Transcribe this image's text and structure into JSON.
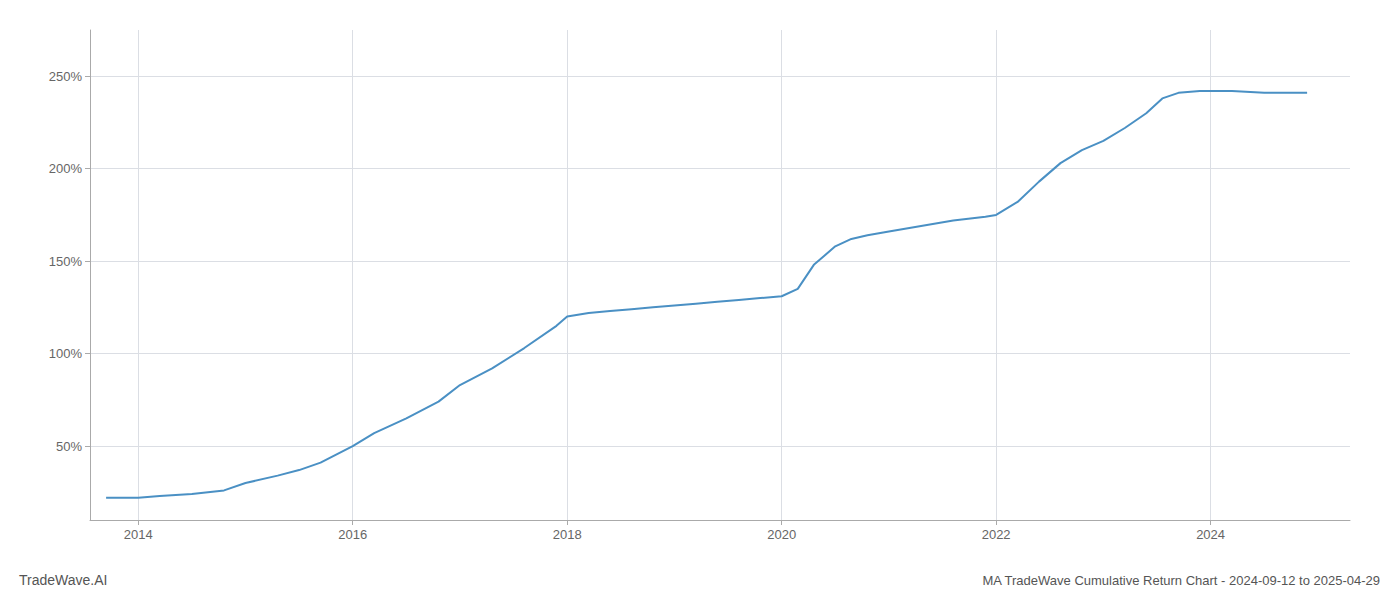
{
  "chart_data": {
    "type": "line",
    "title": "MA TradeWave Cumulative Return Chart - 2024-09-12 to 2025-04-29",
    "annotations": [
      "TradeWave.AI"
    ],
    "color": "#4a90c4",
    "grid": true,
    "xlim": [
      2013.55,
      2025.3
    ],
    "xticks": [
      2014,
      2016,
      2018,
      2020,
      2022,
      2024
    ],
    "ylim": [
      10,
      275
    ],
    "yticks": [
      {
        "value": 50,
        "label": "50%"
      },
      {
        "value": 100,
        "label": "100%"
      },
      {
        "value": 150,
        "label": "150%"
      },
      {
        "value": 200,
        "label": "200%"
      },
      {
        "value": 250,
        "label": "250%"
      }
    ],
    "x": [
      2013.7,
      2014.0,
      2014.2,
      2014.5,
      2014.8,
      2015.0,
      2015.3,
      2015.5,
      2015.7,
      2016.0,
      2016.2,
      2016.5,
      2016.8,
      2017.0,
      2017.3,
      2017.6,
      2017.9,
      2018.0,
      2018.2,
      2018.4,
      2018.6,
      2018.8,
      2019.0,
      2019.2,
      2019.4,
      2019.6,
      2019.8,
      2020.0,
      2020.15,
      2020.3,
      2020.5,
      2020.65,
      2020.8,
      2021.0,
      2021.3,
      2021.6,
      2021.9,
      2022.0,
      2022.2,
      2022.4,
      2022.6,
      2022.8,
      2023.0,
      2023.2,
      2023.4,
      2023.55,
      2023.7,
      2023.9,
      2024.0,
      2024.2,
      2024.5,
      2024.75,
      2024.9
    ],
    "values": [
      22,
      22,
      23,
      24,
      26,
      30,
      34,
      37,
      41,
      50,
      57,
      65,
      74,
      83,
      92,
      103,
      115,
      120,
      122,
      123,
      124,
      125,
      126,
      127,
      128,
      129,
      130,
      131,
      135,
      148,
      158,
      162,
      164,
      166,
      169,
      172,
      174,
      175,
      182,
      193,
      203,
      210,
      215,
      222,
      230,
      238,
      241,
      242,
      242,
      242,
      241,
      241,
      241
    ]
  }
}
